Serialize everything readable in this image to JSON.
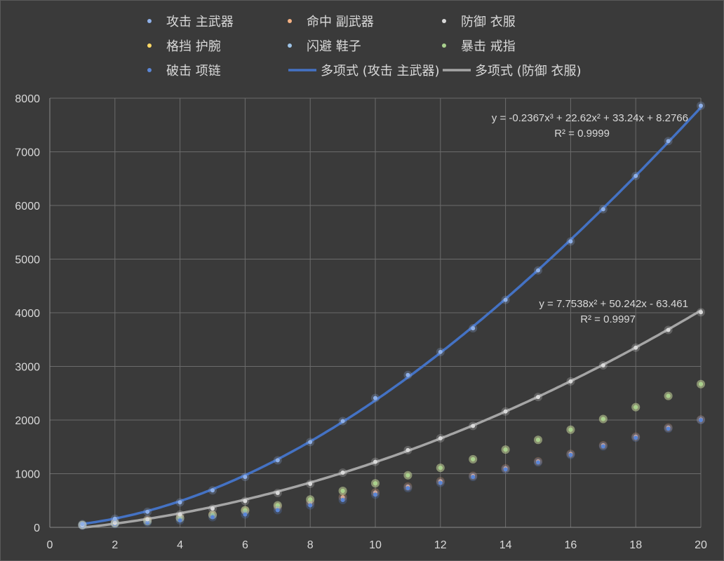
{
  "chart_data": {
    "type": "scatter",
    "title": "",
    "xlabel": "",
    "ylabel": "",
    "xlim": [
      0,
      20
    ],
    "ylim": [
      0,
      8000
    ],
    "x_ticks": [
      0,
      2,
      4,
      6,
      8,
      10,
      12,
      14,
      16,
      18,
      20
    ],
    "y_ticks": [
      0,
      1000,
      2000,
      3000,
      4000,
      5000,
      6000,
      7000,
      8000
    ],
    "grid": true,
    "legend_position": "top",
    "x": [
      1,
      2,
      3,
      4,
      5,
      6,
      7,
      8,
      9,
      10,
      11,
      12,
      13,
      14,
      15,
      16,
      17,
      18,
      19,
      20
    ],
    "series": [
      {
        "name": "攻击 主武器",
        "color": "#8fb0e8",
        "values": [
          60,
          160,
          290,
          465,
          690,
          940,
          1250,
          1590,
          1980,
          2410,
          2840,
          3270,
          3710,
          4240,
          4790,
          5330,
          5930,
          6550,
          7200,
          7860
        ]
      },
      {
        "name": "命中 副武器",
        "color": "#f4b183",
        "values": [
          40,
          90,
          130,
          180,
          240,
          310,
          380,
          460,
          560,
          650,
          760,
          860,
          960,
          1100,
          1230,
          1370,
          1530,
          1690,
          1860,
          2010
        ]
      },
      {
        "name": "防御 衣服",
        "color": "#d9d9d9",
        "values": [
          40,
          80,
          150,
          240,
          350,
          490,
          640,
          810,
          1020,
          1220,
          1440,
          1660,
          1890,
          2160,
          2430,
          2720,
          3020,
          3350,
          3680,
          4010
        ]
      },
      {
        "name": "格挡 护腕",
        "color": "#ffd966",
        "values": [
          45,
          75,
          115,
          170,
          230,
          320,
          410,
          520,
          680,
          820,
          970,
          1110,
          1270,
          1450,
          1630,
          1820,
          2020,
          2240,
          2450,
          2670
        ]
      },
      {
        "name": "闪避 鞋子",
        "color": "#9dc3e6",
        "values": [
          45,
          75,
          115,
          170,
          230,
          320,
          410,
          520,
          680,
          820,
          970,
          1110,
          1270,
          1450,
          1630,
          1820,
          2020,
          2240,
          2450,
          2670
        ]
      },
      {
        "name": "暴击 戒指",
        "color": "#a9d18e",
        "values": [
          45,
          75,
          115,
          170,
          230,
          320,
          410,
          520,
          680,
          820,
          970,
          1110,
          1270,
          1450,
          1630,
          1820,
          2020,
          2240,
          2450,
          2670
        ]
      },
      {
        "name": "破击 项链",
        "color": "#5b86d6",
        "values": [
          30,
          60,
          90,
          130,
          190,
          240,
          320,
          410,
          510,
          610,
          730,
          830,
          940,
          1080,
          1210,
          1350,
          1510,
          1670,
          1840,
          2000
        ]
      }
    ],
    "trendlines": [
      {
        "name": "多项式 (攻击 主武器)",
        "type": "polynomial",
        "color": "#4472c4",
        "coefficients": [
          8.2766,
          33.24,
          22.62,
          -0.2367
        ],
        "equation": "y = -0.2367x³ + 22.62x² + 33.24x + 8.2766",
        "r2": "R² = 0.9999"
      },
      {
        "name": "多项式 (防御 衣服)",
        "type": "polynomial",
        "color": "#a5a5a5",
        "coefficients": [
          -63.461,
          50.242,
          7.7538
        ],
        "equation": "y = 7.7538x² + 50.242x - 63.461",
        "r2": "R² = 0.9997"
      }
    ]
  },
  "colors": {
    "background": "#3a3a3a",
    "grid": "#6b6b6b",
    "text": "#d9d9d9"
  }
}
